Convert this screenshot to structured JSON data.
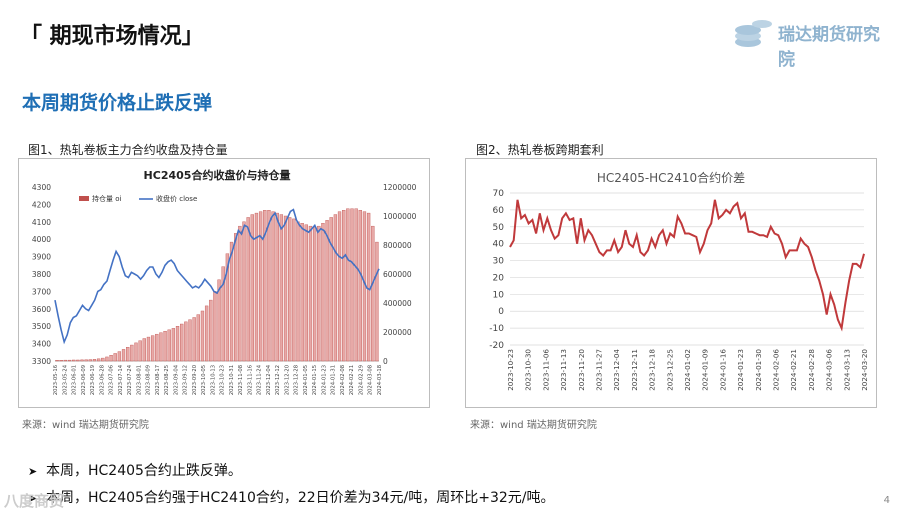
{
  "page": {
    "title": "「 期现市场情况」",
    "logo_text": "瑞达期货研究院",
    "subtitle": "本周期货价格止跌反弹",
    "page_number": "4",
    "watermark": "八度商贸"
  },
  "figures": [
    {
      "label": "图1、热轧卷板主力合约收盘及持仓量",
      "source": "来源：wind   瑞达期货研究院"
    },
    {
      "label": "图2、热轧卷板跨期套利",
      "source": "来源：wind   瑞达期货研究院"
    }
  ],
  "bullets": [
    "本周，HC2405合约止跌反弹。",
    "本周，HC2405合约强于HC2410合约，22日价差为34元/吨，周环比+32元/吨。"
  ],
  "colors": {
    "title_blue": "#1f6fb5",
    "bar_red": "#c0504d",
    "line_blue": "#4472c4",
    "line_red": "#c0393b"
  },
  "chart_data": [
    {
      "type": "bar",
      "title": "HC2405合约收盘价与持仓量",
      "legend": [
        "持仓量 oi",
        "收盘价 close"
      ],
      "legend_position": "top-left",
      "y_left": {
        "ticks": [
          3300,
          3400,
          3500,
          3600,
          3700,
          3800,
          3900,
          4000,
          4100,
          4200,
          4300
        ],
        "lim": [
          3300,
          4300
        ]
      },
      "y_right": {
        "ticks": [
          0,
          200000,
          400000,
          600000,
          800000,
          1000000,
          1200000
        ],
        "lim": [
          0,
          1200000
        ]
      },
      "x_ticks": [
        "2023-05-16",
        "2023-05-24",
        "2023-06-01",
        "2023-06-09",
        "2023-06-19",
        "2023-06-28",
        "2023-07-06",
        "2023-07-14",
        "2023-07-24",
        "2023-08-01",
        "2023-08-09",
        "2023-08-17",
        "2023-08-25",
        "2023-09-04",
        "2023-09-12",
        "2023-09-20",
        "2023-10-05",
        "2023-10-13",
        "2023-10-23",
        "2023-10-31",
        "2023-11-08",
        "2023-11-16",
        "2023-11-24",
        "2023-12-04",
        "2023-12-12",
        "2023-12-20",
        "2023-12-28",
        "2024-01-05",
        "2024-01-15",
        "2024-01-23",
        "2024-01-31",
        "2024-02-08",
        "2024-02-21",
        "2024-02-29",
        "2024-03-08",
        "2024-03-18"
      ],
      "series": [
        {
          "name": "持仓量 oi",
          "kind": "bar",
          "values": [
            5000,
            5000,
            6000,
            6000,
            7000,
            7000,
            8000,
            9000,
            10000,
            12000,
            15000,
            20000,
            28000,
            40000,
            52000,
            65000,
            80000,
            95000,
            110000,
            125000,
            140000,
            155000,
            165000,
            175000,
            185000,
            195000,
            205000,
            215000,
            225000,
            240000,
            255000,
            270000,
            285000,
            300000,
            320000,
            345000,
            380000,
            420000,
            480000,
            560000,
            650000,
            740000,
            820000,
            880000,
            930000,
            960000,
            990000,
            1010000,
            1020000,
            1030000,
            1040000,
            1040000,
            1030000,
            1020000,
            1010000,
            1000000,
            990000,
            980000,
            960000,
            950000,
            940000,
            930000,
            920000,
            930000,
            950000,
            970000,
            990000,
            1010000,
            1030000,
            1040000,
            1050000,
            1050000,
            1050000,
            1040000,
            1030000,
            1020000,
            930000,
            820000
          ]
        },
        {
          "name": "收盘价 close",
          "kind": "line",
          "values": [
            3650,
            3560,
            3480,
            3410,
            3450,
            3520,
            3550,
            3560,
            3590,
            3620,
            3600,
            3590,
            3620,
            3650,
            3700,
            3710,
            3740,
            3760,
            3820,
            3880,
            3930,
            3900,
            3840,
            3790,
            3780,
            3810,
            3800,
            3790,
            3770,
            3790,
            3820,
            3840,
            3840,
            3800,
            3780,
            3810,
            3850,
            3870,
            3880,
            3860,
            3820,
            3800,
            3780,
            3760,
            3740,
            3720,
            3730,
            3720,
            3740,
            3770,
            3750,
            3730,
            3700,
            3690,
            3720,
            3740,
            3800,
            3880,
            3930,
            3990,
            4050,
            4030,
            4080,
            4070,
            4020,
            4000,
            4010,
            4020,
            4000,
            4040,
            4090,
            4130,
            4150,
            4100,
            4060,
            4080,
            4120,
            4160,
            4170,
            4110,
            4080,
            4060,
            4050,
            4040,
            4060,
            4080,
            4040,
            4060,
            4050,
            4020,
            3980,
            3950,
            3920,
            3900,
            3890,
            3910,
            3880,
            3870,
            3850,
            3830,
            3800,
            3760,
            3720,
            3710,
            3750,
            3790,
            3830
          ]
        }
      ]
    },
    {
      "type": "line",
      "title": "HC2405-HC2410合约价差",
      "ylim": [
        -20,
        70
      ],
      "y_ticks": [
        -20,
        -10,
        0,
        10,
        20,
        30,
        40,
        50,
        60,
        70
      ],
      "x_ticks": [
        "2023-10-23",
        "2023-10-30",
        "2023-11-06",
        "2023-11-13",
        "2023-11-20",
        "2023-11-27",
        "2023-12-04",
        "2023-12-11",
        "2023-12-18",
        "2023-12-25",
        "2024-01-02",
        "2024-01-09",
        "2024-01-16",
        "2024-01-23",
        "2024-01-30",
        "2024-02-06",
        "2024-02-21",
        "2024-02-28",
        "2024-03-06",
        "2024-03-13",
        "2024-03-20"
      ],
      "series": [
        {
          "name": "价差",
          "values": [
            38,
            42,
            66,
            55,
            57,
            52,
            54,
            46,
            58,
            48,
            55,
            48,
            43,
            45,
            55,
            58,
            54,
            55,
            40,
            55,
            42,
            48,
            45,
            40,
            35,
            33,
            36,
            36,
            42,
            35,
            38,
            48,
            40,
            38,
            45,
            35,
            33,
            36,
            43,
            38,
            45,
            48,
            40,
            46,
            44,
            56,
            52,
            46,
            46,
            45,
            44,
            35,
            40,
            48,
            52,
            66,
            55,
            57,
            60,
            58,
            62,
            64,
            55,
            58,
            47,
            47,
            46,
            45,
            45,
            44,
            50,
            46,
            45,
            40,
            32,
            36,
            36,
            36,
            43,
            40,
            38,
            32,
            24,
            18,
            10,
            -2,
            10,
            4,
            -5,
            -10,
            5,
            18,
            28,
            28,
            26,
            34
          ]
        }
      ]
    }
  ]
}
